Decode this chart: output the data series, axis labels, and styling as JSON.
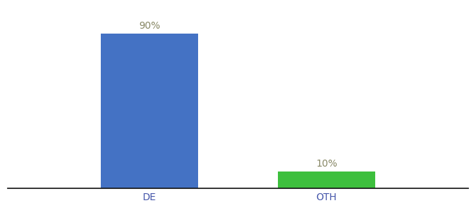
{
  "categories": [
    "DE",
    "OTH"
  ],
  "values": [
    90,
    10
  ],
  "bar_colors": [
    "#4472c4",
    "#3dbf3d"
  ],
  "label_texts": [
    "90%",
    "10%"
  ],
  "background_color": "#ffffff",
  "text_color": "#888866",
  "xlabel_color": "#4455aa",
  "ylim": [
    0,
    105
  ],
  "bar_width": 0.55,
  "label_fontsize": 10,
  "tick_fontsize": 10,
  "fig_width": 6.8,
  "fig_height": 3.0,
  "dpi": 100,
  "xlim": [
    -0.8,
    1.8
  ]
}
